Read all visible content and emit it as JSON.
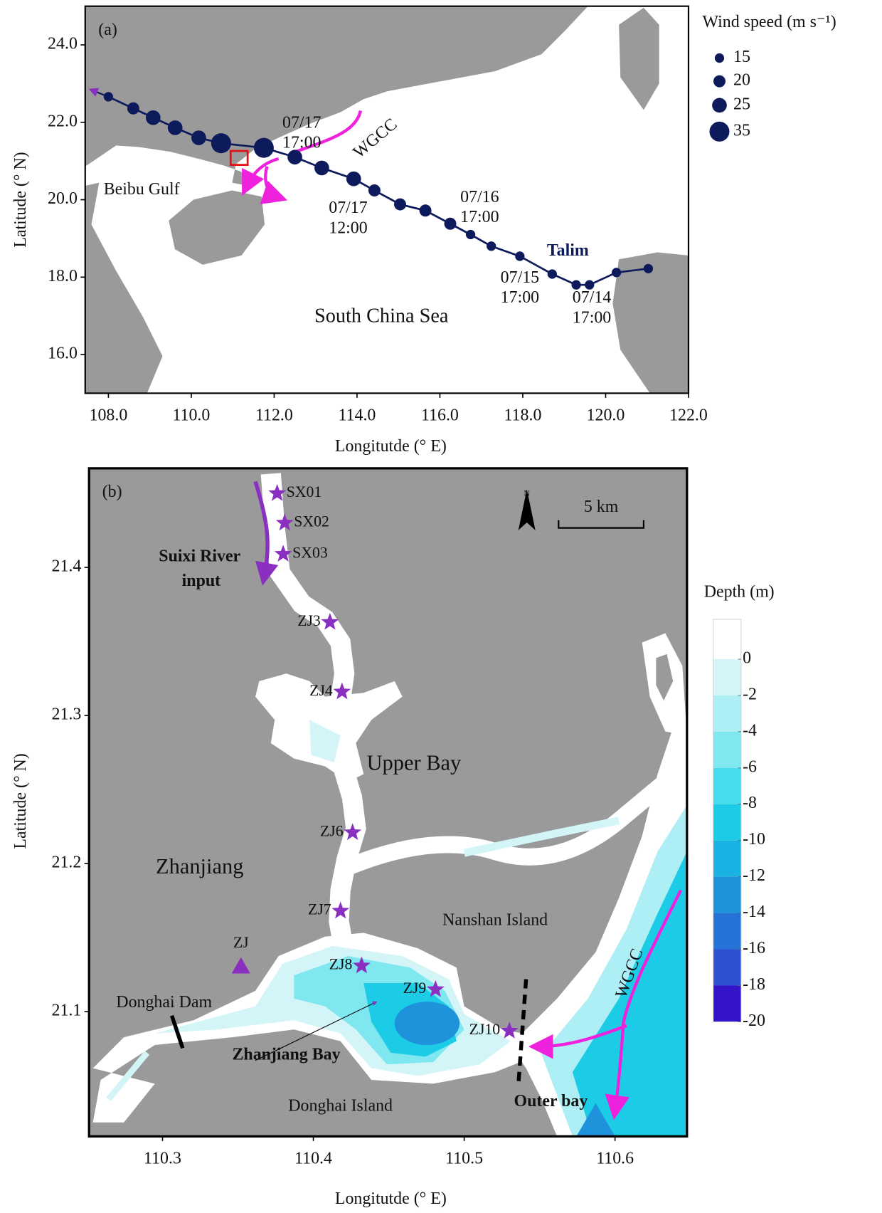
{
  "panel_a": {
    "label": "(a)",
    "xlabel": "Longitutde (° E)",
    "ylabel": "Latitude (° N)",
    "xlim": [
      107.44,
      122.0
    ],
    "ylim": [
      15.0,
      25.0
    ],
    "xticks": [
      {
        "value": 108,
        "label": "108.0"
      },
      {
        "value": 110,
        "label": "110.0"
      },
      {
        "value": 112,
        "label": "112.0"
      },
      {
        "value": 114,
        "label": "114.0"
      },
      {
        "value": 116,
        "label": "116.0"
      },
      {
        "value": 118,
        "label": "118.0"
      },
      {
        "value": 120,
        "label": "120.0"
      },
      {
        "value": 122,
        "label": "122.0"
      }
    ],
    "yticks": [
      {
        "value": 16,
        "label": "16.0"
      },
      {
        "value": 18,
        "label": "18.0"
      },
      {
        "value": 20,
        "label": "20.0"
      },
      {
        "value": 22,
        "label": "22.0"
      },
      {
        "value": 24,
        "label": "24.0"
      }
    ],
    "typhoon": {
      "name": "Talim",
      "color": "#0d1a5c",
      "lon": [
        108.0,
        108.6,
        109.08,
        109.61,
        110.18,
        110.72,
        111.75,
        112.5,
        113.15,
        113.92,
        114.42,
        115.04,
        115.65,
        116.25,
        116.74,
        117.24,
        117.93,
        118.71,
        119.29,
        119.61,
        120.26,
        121.03
      ],
      "lat": [
        22.66,
        22.36,
        22.12,
        21.86,
        21.6,
        21.46,
        21.34,
        21.1,
        20.82,
        20.54,
        20.24,
        19.88,
        19.72,
        19.38,
        19.1,
        18.8,
        18.54,
        18.08,
        17.8,
        17.8,
        18.12,
        18.22
      ],
      "wind_speed": [
        15,
        20,
        25,
        25,
        25,
        35,
        35,
        25,
        25,
        25,
        20,
        20,
        20,
        20,
        15,
        15,
        15,
        15,
        15,
        15,
        15,
        15
      ]
    },
    "time_labels": [
      {
        "date": "07/17",
        "time": "17:00"
      },
      {
        "date": "07/17",
        "time": "12:00"
      },
      {
        "date": "07/16",
        "time": "17:00"
      },
      {
        "date": "07/15",
        "time": "17:00"
      },
      {
        "date": "07/14",
        "time": "17:00"
      }
    ],
    "places": [
      "Beibu Gulf",
      "South China Sea"
    ],
    "current": "WGCC",
    "legend": {
      "title": "Wind speed (m s⁻¹)",
      "sizes": [
        15,
        20,
        25,
        35
      ]
    }
  },
  "panel_b": {
    "label": "(b)",
    "xlabel": "Longitutde (° E)",
    "ylabel": "Latitude (° N)",
    "xlim": [
      110.2513,
      110.6477
    ],
    "ylim": [
      21.0158,
      21.4669
    ],
    "xticks": [
      110.3,
      110.4,
      110.5,
      110.6
    ],
    "yticks": [
      21.1,
      21.2,
      21.3,
      21.4
    ],
    "stations": {
      "color": "#8a2fc0",
      "names": [
        "SX01",
        "SX02",
        "SX03",
        "ZJ3",
        "ZJ4",
        "ZJ6",
        "ZJ7",
        "ZJ8",
        "ZJ9",
        "ZJ10"
      ],
      "lon": [
        110.376,
        110.381,
        110.38,
        110.411,
        110.419,
        110.426,
        110.418,
        110.432,
        110.481,
        110.53
      ],
      "lat": [
        21.45,
        21.43,
        21.409,
        21.363,
        21.316,
        21.221,
        21.168,
        21.131,
        21.115,
        21.087
      ]
    },
    "weather_station": {
      "name": "ZJ",
      "lon": 110.352,
      "lat": 21.131
    },
    "river_input": [
      "Suixi River",
      "input"
    ],
    "places": [
      "Upper Bay",
      "Zhanjiang",
      "Nanshan Island",
      "Donghai Dam",
      "Zhanjiang Bay",
      "Donghai Island",
      "Outer bay"
    ],
    "current": "WGCC",
    "north": "N",
    "scale_bar": "5 km",
    "colorbar": {
      "title": "Depth (m)",
      "range": [
        -20,
        2.2
      ],
      "ticks": [
        0,
        -2,
        -4,
        -6,
        -8,
        -10,
        -12,
        -14,
        -16,
        -18,
        -20
      ],
      "colors": [
        "#ffffff",
        "#d4f5f8",
        "#aeeff5",
        "#7ee7f0",
        "#45ddec",
        "#1ccbe6",
        "#1ab2e2",
        "#1f92dc",
        "#2672d6",
        "#2c50cf",
        "#3413c8"
      ]
    }
  }
}
